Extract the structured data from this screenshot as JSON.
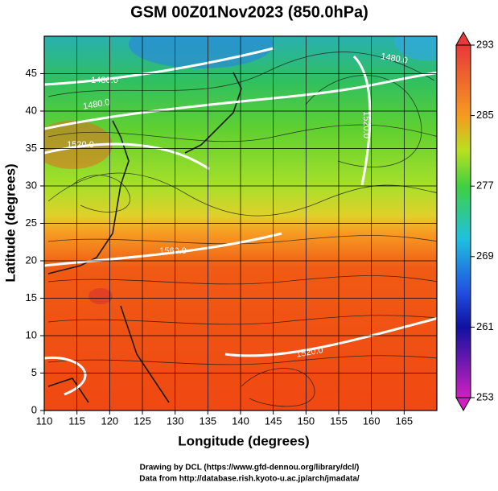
{
  "title": "GSM 00Z01Nov2023 (850.0hPa)",
  "x_axis": {
    "label": "Longitude (degrees)",
    "lim": [
      110,
      170
    ],
    "ticks": [
      110,
      115,
      120,
      125,
      130,
      135,
      140,
      145,
      150,
      155,
      160,
      165
    ]
  },
  "y_axis": {
    "label": "Latitude  (degrees)",
    "lim": [
      0,
      50
    ],
    "ticks": [
      0,
      5,
      10,
      15,
      20,
      25,
      30,
      35,
      40,
      45
    ]
  },
  "colorbar": {
    "lim": [
      253,
      293
    ],
    "ticks": [
      253,
      261,
      269,
      277,
      285,
      293
    ]
  },
  "contour_labels": [
    "1480.0",
    "1480.0",
    "1520.0",
    "1480.0",
    "1520.0",
    "1560.0",
    "1520.0"
  ],
  "credits": [
    "Drawing by DCL (https://www.gfd-dennou.org/library/dcl/)",
    "Data from http://database.rish.kyoto-u.ac.jp/arch/jmadata/"
  ]
}
